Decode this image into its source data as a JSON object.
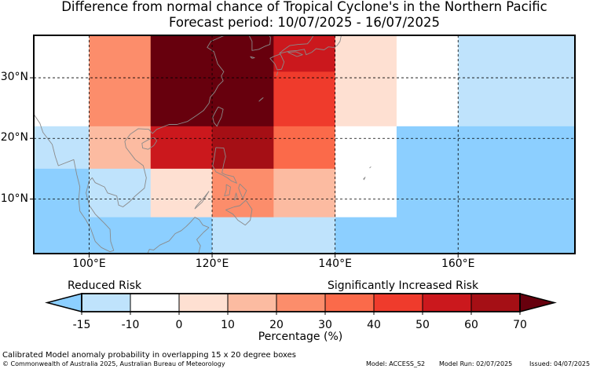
{
  "title": "Difference from normal chance of Tropical Cyclone's in the Northern Pacific",
  "subtitle": "Forecast period: 10/07/2025 - 16/07/2025",
  "map": {
    "lon_range": [
      91,
      179
    ],
    "lat_range": [
      1,
      37
    ],
    "lon_ticks": [
      {
        "value": 100,
        "label": "100°E"
      },
      {
        "value": 120,
        "label": "120°E"
      },
      {
        "value": 140,
        "label": "140°E"
      },
      {
        "value": 160,
        "label": "160°E"
      }
    ],
    "lat_ticks": [
      {
        "value": 30,
        "label": "30°N"
      },
      {
        "value": 20,
        "label": "20°N"
      },
      {
        "value": 10,
        "label": "10°N"
      }
    ],
    "gridlines": true,
    "cells": [
      {
        "lon": [
          91,
          100
        ],
        "lat": [
          20,
          37
        ],
        "color": "#ffffff"
      },
      {
        "lon": [
          100,
          110
        ],
        "lat": [
          20,
          37
        ],
        "color": "#fc8d6b"
      },
      {
        "lon": [
          110,
          130
        ],
        "lat": [
          22,
          37
        ],
        "color": "#67000d"
      },
      {
        "lon": [
          130,
          140
        ],
        "lat": [
          31,
          37
        ],
        "color": "#cb181d"
      },
      {
        "lon": [
          130,
          140
        ],
        "lat": [
          22,
          31
        ],
        "color": "#ef3b2c"
      },
      {
        "lon": [
          140,
          150
        ],
        "lat": [
          22,
          37
        ],
        "color": "#fee0d2"
      },
      {
        "lon": [
          150,
          160
        ],
        "lat": [
          22,
          37
        ],
        "color": "#ffffff"
      },
      {
        "lon": [
          160,
          179
        ],
        "lat": [
          22,
          37
        ],
        "color": "#bfe3fc"
      },
      {
        "lon": [
          91,
          100
        ],
        "lat": [
          15,
          22
        ],
        "color": "#bfe3fc"
      },
      {
        "lon": [
          100,
          110
        ],
        "lat": [
          15,
          22
        ],
        "color": "#fcbba1"
      },
      {
        "lon": [
          110,
          120
        ],
        "lat": [
          15,
          22
        ],
        "color": "#cb181d"
      },
      {
        "lon": [
          120,
          130
        ],
        "lat": [
          15,
          22
        ],
        "color": "#a50f15"
      },
      {
        "lon": [
          130,
          140
        ],
        "lat": [
          15,
          22
        ],
        "color": "#fb6a4a"
      },
      {
        "lon": [
          140,
          150
        ],
        "lat": [
          7,
          22
        ],
        "color": "#ffffff"
      },
      {
        "lon": [
          150,
          179
        ],
        "lat": [
          1,
          22
        ],
        "color": "#8ccfff"
      },
      {
        "lon": [
          91,
          100
        ],
        "lat": [
          1,
          15
        ],
        "color": "#8ccfff"
      },
      {
        "lon": [
          100,
          110
        ],
        "lat": [
          7,
          15
        ],
        "color": "#bfe3fc"
      },
      {
        "lon": [
          110,
          120
        ],
        "lat": [
          7,
          15
        ],
        "color": "#fee0d2"
      },
      {
        "lon": [
          120,
          130
        ],
        "lat": [
          7,
          15
        ],
        "color": "#fc8d6b"
      },
      {
        "lon": [
          130,
          140
        ],
        "lat": [
          7,
          15
        ],
        "color": "#fcbba1"
      },
      {
        "lon": [
          100,
          120
        ],
        "lat": [
          1,
          7
        ],
        "color": "#8ccfff"
      },
      {
        "lon": [
          120,
          140
        ],
        "lat": [
          1,
          7
        ],
        "color": "#bfe3fc"
      },
      {
        "lon": [
          140,
          150
        ],
        "lat": [
          1,
          7
        ],
        "color": "#8ccfff"
      }
    ],
    "coastline_color": "#8a8a8a",
    "coastlines": [
      [
        [
          91,
          24
        ],
        [
          92,
          22.5
        ],
        [
          92.5,
          21
        ],
        [
          94,
          19
        ],
        [
          94.5,
          17
        ],
        [
          95,
          15.5
        ],
        [
          97.5,
          16.5
        ],
        [
          98,
          14
        ],
        [
          98.5,
          12
        ],
        [
          98.3,
          10
        ],
        [
          98.5,
          8
        ],
        [
          99.5,
          6.5
        ],
        [
          100.3,
          5
        ],
        [
          101,
          3
        ],
        [
          102,
          2
        ],
        [
          103.4,
          1.3
        ],
        [
          104,
          1.5
        ],
        [
          103.5,
          3
        ],
        [
          103.4,
          5
        ],
        [
          102.5,
          6
        ],
        [
          101,
          7.5
        ],
        [
          100,
          9
        ],
        [
          99.5,
          11
        ],
        [
          100,
          13
        ],
        [
          100.5,
          13.5
        ],
        [
          101,
          12.7
        ],
        [
          102.5,
          12
        ],
        [
          103,
          11
        ],
        [
          104.5,
          10.5
        ],
        [
          104.8,
          9
        ],
        [
          105.5,
          8.7
        ],
        [
          106.5,
          9.5
        ],
        [
          107.5,
          10.5
        ],
        [
          109,
          11.8
        ],
        [
          109.3,
          13.5
        ],
        [
          108.8,
          15.5
        ],
        [
          107.5,
          16.5
        ],
        [
          106,
          18.5
        ],
        [
          105.8,
          19.5
        ],
        [
          106.7,
          20.7
        ],
        [
          108,
          21.6
        ],
        [
          109.7,
          21.5
        ],
        [
          110.3,
          20.8
        ],
        [
          111,
          21.5
        ],
        [
          113,
          22.3
        ],
        [
          114.3,
          22.3
        ],
        [
          116,
          22.8
        ],
        [
          117.5,
          23.8
        ],
        [
          118.6,
          24.6
        ],
        [
          119.5,
          25.8
        ],
        [
          119.7,
          26.8
        ],
        [
          120.4,
          27.6
        ],
        [
          121,
          28.7
        ],
        [
          121.8,
          29.5
        ],
        [
          121.5,
          30.3
        ],
        [
          121.9,
          31
        ],
        [
          120.9,
          32.3
        ],
        [
          120.3,
          34.3
        ],
        [
          119.2,
          35
        ],
        [
          119.8,
          36
        ],
        [
          120.7,
          36.4
        ],
        [
          121.8,
          36.9
        ],
        [
          122.5,
          37
        ]
      ],
      [
        [
          110.6,
          20.1
        ],
        [
          110,
          20
        ],
        [
          108.6,
          19.2
        ],
        [
          108.7,
          18.4
        ],
        [
          109.6,
          18.2
        ],
        [
          110.5,
          18.8
        ],
        [
          111,
          19.6
        ],
        [
          110.6,
          20.1
        ]
      ],
      [
        [
          121,
          25.2
        ],
        [
          121.8,
          24.8
        ],
        [
          121.5,
          23.5
        ],
        [
          121,
          22.5
        ],
        [
          120.8,
          22
        ],
        [
          120.3,
          22.6
        ],
        [
          120.1,
          23.5
        ],
        [
          120.6,
          24.5
        ],
        [
          121,
          25.2
        ]
      ],
      [
        [
          120.6,
          18.5
        ],
        [
          121.9,
          18.4
        ],
        [
          122.2,
          17
        ],
        [
          121.9,
          15.8
        ],
        [
          121.6,
          14.3
        ],
        [
          122.2,
          14
        ],
        [
          123.5,
          13.7
        ],
        [
          124,
          12.6
        ],
        [
          123.1,
          13
        ],
        [
          122.5,
          13.5
        ],
        [
          121.8,
          13.9
        ],
        [
          120.6,
          14.5
        ],
        [
          120.1,
          15.5
        ],
        [
          120.3,
          16.5
        ],
        [
          120.6,
          18.5
        ]
      ],
      [
        [
          122.3,
          12.4
        ],
        [
          123,
          12
        ],
        [
          122.8,
          10.7
        ],
        [
          122,
          10.5
        ],
        [
          122.3,
          11.5
        ],
        [
          122.3,
          12.4
        ]
      ],
      [
        [
          124.5,
          12.5
        ],
        [
          125.6,
          11.4
        ],
        [
          125,
          10.1
        ],
        [
          124.6,
          11
        ],
        [
          124.3,
          11.8
        ],
        [
          124.5,
          12.5
        ]
      ],
      [
        [
          123.6,
          9.8
        ],
        [
          123.9,
          11
        ],
        [
          124.1,
          10.2
        ],
        [
          123.6,
          9.8
        ]
      ],
      [
        [
          119.5,
          11.3
        ],
        [
          118.4,
          9.5
        ],
        [
          117.2,
          8.4
        ],
        [
          117.4,
          8.8
        ],
        [
          118.8,
          10.4
        ],
        [
          119.5,
          11.3
        ]
      ],
      [
        [
          122.2,
          8.2
        ],
        [
          123.6,
          8.7
        ],
        [
          124.5,
          8.9
        ],
        [
          125.5,
          9.8
        ],
        [
          126.5,
          8.3
        ],
        [
          126.2,
          6.5
        ],
        [
          125.4,
          5.7
        ],
        [
          124.2,
          6.5
        ],
        [
          123.4,
          7.5
        ],
        [
          122.2,
          8.2
        ]
      ],
      [
        [
          119.5,
          5.3
        ],
        [
          118.5,
          5.7
        ],
        [
          117.9,
          6.6
        ],
        [
          117.2,
          7
        ],
        [
          116.5,
          6.2
        ],
        [
          115.8,
          5.5
        ],
        [
          115,
          4.8
        ],
        [
          114,
          4.3
        ],
        [
          113,
          3.1
        ],
        [
          111.5,
          2.4
        ],
        [
          110.5,
          1.6
        ],
        [
          109.8,
          1.7
        ],
        [
          109.5,
          1
        ],
        [
          117.8,
          1
        ],
        [
          118.1,
          2.3
        ],
        [
          117.5,
          3.3
        ],
        [
          118.6,
          4.5
        ],
        [
          119.5,
          5.3
        ]
      ],
      [
        [
          129.4,
          33.2
        ],
        [
          130.2,
          32.3
        ],
        [
          130.6,
          31.3
        ],
        [
          131.3,
          31.4
        ],
        [
          131.7,
          32.6
        ],
        [
          131.1,
          33.9
        ],
        [
          130.2,
          33.6
        ],
        [
          129.4,
          33.2
        ]
      ],
      [
        [
          132.3,
          34.2
        ],
        [
          133.8,
          33.5
        ],
        [
          134.7,
          33.8
        ],
        [
          133.6,
          34.3
        ],
        [
          132.3,
          34.2
        ]
      ],
      [
        [
          130.9,
          34
        ],
        [
          132.6,
          34.4
        ],
        [
          133.9,
          34.5
        ],
        [
          135,
          34.7
        ],
        [
          135.3,
          33.8
        ],
        [
          136.2,
          34.2
        ],
        [
          136.9,
          34.8
        ],
        [
          138.2,
          34.6
        ],
        [
          138.9,
          35.1
        ],
        [
          139.8,
          35
        ],
        [
          140.3,
          35.3
        ],
        [
          140.8,
          36
        ],
        [
          141,
          37
        ],
        [
          137,
          37
        ],
        [
          136.5,
          37
        ],
        [
          136,
          36.2
        ],
        [
          135.5,
          35.6
        ],
        [
          134,
          35.5
        ],
        [
          132.6,
          35.3
        ],
        [
          131.5,
          34.5
        ],
        [
          130.9,
          34
        ]
      ],
      [
        [
          126,
          37
        ],
        [
          126.5,
          36
        ],
        [
          126.5,
          34.5
        ],
        [
          127.6,
          34.7
        ],
        [
          128.6,
          35.2
        ],
        [
          129.4,
          35.5
        ],
        [
          129.5,
          36.6
        ],
        [
          129.3,
          37
        ]
      ],
      [
        [
          126.2,
          33.5
        ],
        [
          126.9,
          33.3
        ],
        [
          126.5,
          33.2
        ],
        [
          126.2,
          33.5
        ]
      ],
      [
        [
          127.6,
          26.1
        ],
        [
          128.3,
          26.7
        ],
        [
          127.9,
          26.4
        ],
        [
          127.6,
          26.1
        ]
      ],
      [
        [
          130.7,
          31
        ],
        [
          130.5,
          30.4
        ],
        [
          130.7,
          31
        ]
      ],
      [
        [
          144.6,
          13.3
        ],
        [
          144.9,
          13.6
        ],
        [
          144.7,
          13.2
        ],
        [
          144.6,
          13.3
        ]
      ],
      [
        [
          145.6,
          15.1
        ],
        [
          145.8,
          15.3
        ],
        [
          145.6,
          15.1
        ]
      ]
    ]
  },
  "colorbar": {
    "reduced_label": "Reduced Risk",
    "increased_label": "Significantly Increased Risk",
    "boundaries": [
      -15,
      -10,
      0,
      10,
      20,
      30,
      40,
      50,
      60,
      70
    ],
    "tick_labels": [
      "-15",
      "-10",
      "0",
      "10",
      "20",
      "30",
      "40",
      "50",
      "60",
      "70"
    ],
    "colors": [
      "#bfe3fc",
      "#ffffff",
      "#fee0d2",
      "#fcbba1",
      "#fc8d6b",
      "#fb6a4a",
      "#ef3b2c",
      "#cb181d",
      "#a50f15"
    ],
    "under_color": "#8ccfff",
    "over_color": "#67000d",
    "label": "Percentage (%)"
  },
  "footnote": "Calibrated Model anomaly probability in overlapping 15 x 20 degree boxes",
  "copyright": "© Commonwealth of Australia 2025, Australian Bureau of Meteorology",
  "model": "Model: ACCESS_S2",
  "model_run": "Model Run: 02/07/2025",
  "issued": "Issued: 04/07/2025"
}
